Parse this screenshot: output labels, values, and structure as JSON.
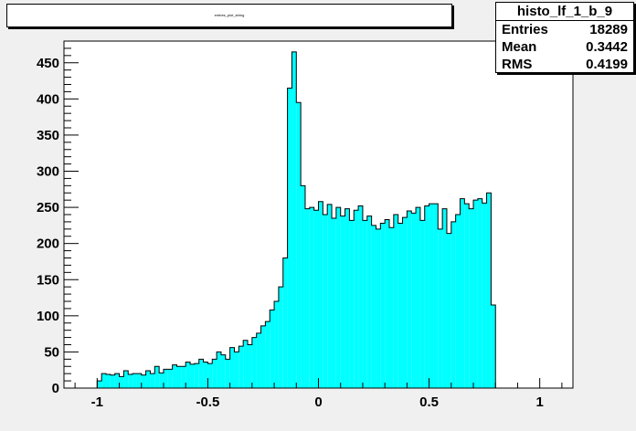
{
  "title": "entries_plot_string",
  "stats": {
    "name": "histo_lf_1_b_9",
    "rows": [
      {
        "label": "Entries",
        "value": "18289"
      },
      {
        "label": "Mean",
        "value": "0.3442"
      },
      {
        "label": "RMS",
        "value": "0.4199"
      }
    ]
  },
  "colors": {
    "fill": "#00ffff",
    "frame": "#ffffff",
    "background": "#f0f0f0",
    "line": "#000000"
  },
  "chart_data": {
    "type": "bar",
    "title": "",
    "xlabel": "",
    "ylabel": "",
    "xlim": [
      -1.15,
      1.15
    ],
    "ylim": [
      0,
      480
    ],
    "bin_edges_start": -1.0,
    "bin_width": 0.02,
    "x_ticks": [
      -1,
      -0.5,
      0,
      0.5,
      1
    ],
    "x_tick_labels": [
      "-1",
      "-0.5",
      "0",
      "0.5",
      "1"
    ],
    "y_ticks": [
      0,
      50,
      100,
      150,
      200,
      250,
      300,
      350,
      400,
      450
    ],
    "y_tick_labels": [
      "0",
      "50",
      "100",
      "150",
      "200",
      "250",
      "300",
      "350",
      "400",
      "450"
    ],
    "values": [
      10,
      20,
      19,
      18,
      20,
      16,
      24,
      19,
      20,
      20,
      18,
      24,
      20,
      30,
      21,
      26,
      26,
      32,
      30,
      30,
      36,
      33,
      34,
      40,
      36,
      34,
      40,
      50,
      46,
      40,
      56,
      50,
      58,
      66,
      60,
      70,
      76,
      86,
      92,
      108,
      120,
      140,
      180,
      415,
      465,
      395,
      280,
      248,
      250,
      246,
      258,
      240,
      254,
      235,
      250,
      238,
      248,
      232,
      246,
      252,
      232,
      238,
      225,
      220,
      228,
      233,
      222,
      240,
      228,
      236,
      245,
      242,
      250,
      232,
      252,
      255,
      255,
      220,
      248,
      214,
      230,
      240,
      262,
      255,
      248,
      260,
      262,
      256,
      270,
      115
    ]
  }
}
